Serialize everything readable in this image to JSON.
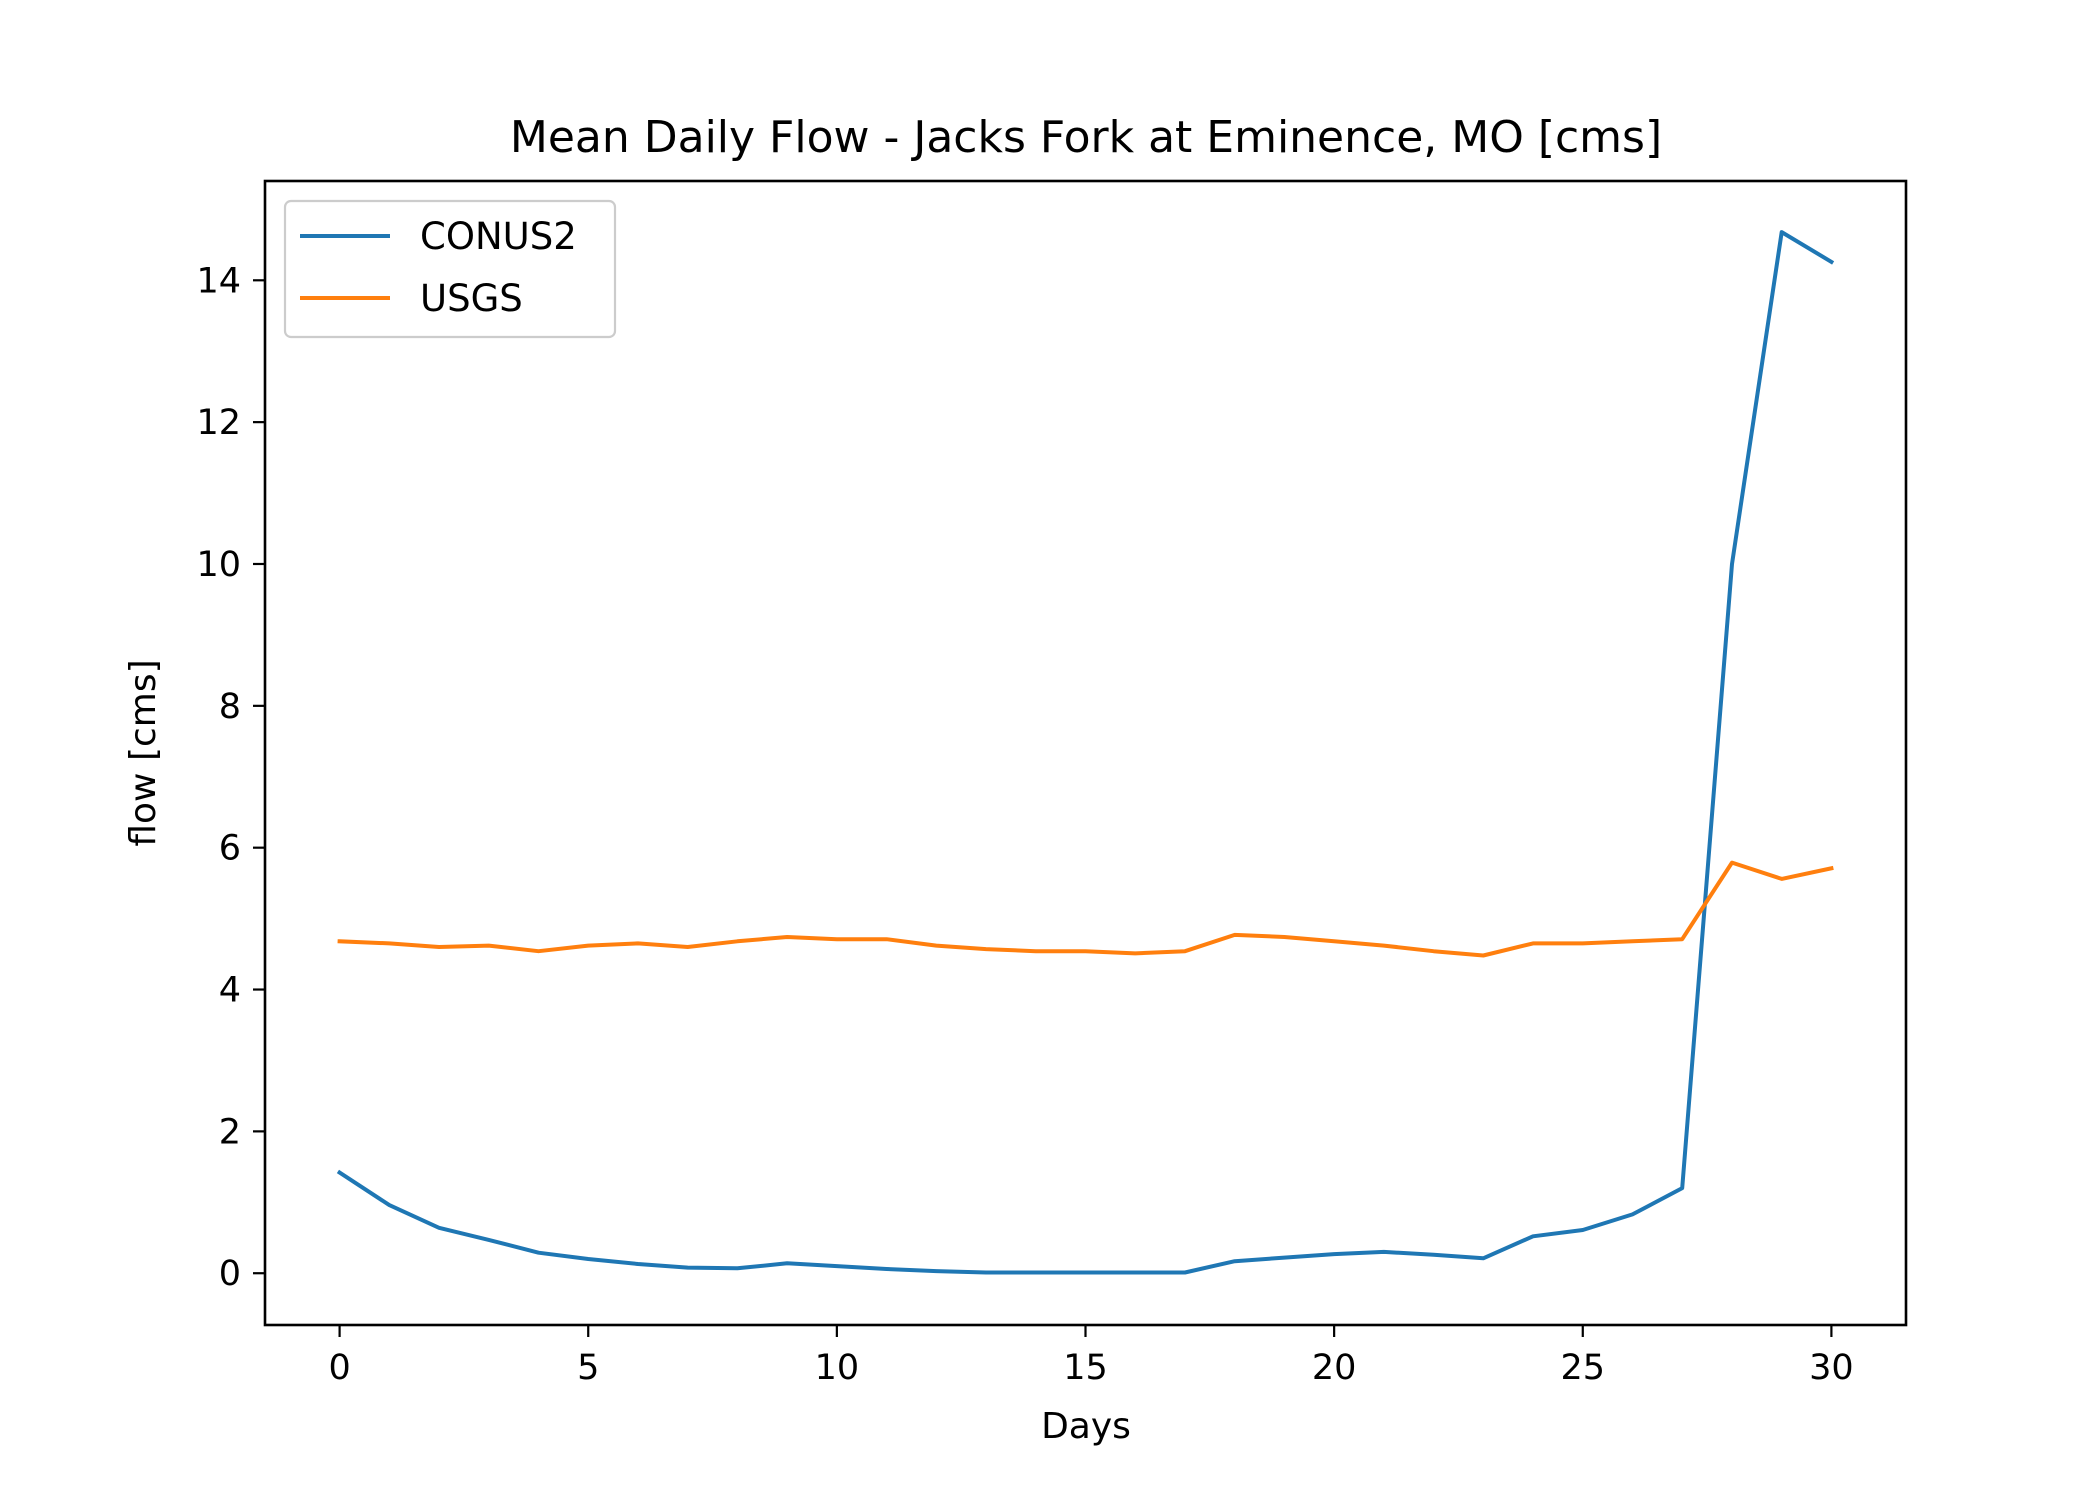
{
  "chart_data": {
    "type": "line",
    "title": "Mean Daily Flow - Jacks Fork at Eminence, MO [cms]",
    "xlabel": "Days",
    "ylabel": "flow [cms]",
    "xlim": [
      -1.5,
      31.5
    ],
    "ylim": [
      -0.73,
      15.4
    ],
    "xticks": [
      0,
      5,
      10,
      15,
      20,
      25,
      30
    ],
    "yticks": [
      0,
      2,
      4,
      6,
      8,
      10,
      12,
      14
    ],
    "xtick_labels": [
      "0",
      "5",
      "10",
      "15",
      "20",
      "25",
      "30"
    ],
    "ytick_labels": [
      "0",
      "2",
      "4",
      "6",
      "8",
      "10",
      "12",
      "14"
    ],
    "grid": false,
    "legend_position": "upper-left",
    "x": [
      0,
      1,
      2,
      3,
      4,
      5,
      6,
      7,
      8,
      9,
      10,
      11,
      12,
      13,
      14,
      15,
      16,
      17,
      18,
      19,
      20,
      21,
      22,
      23,
      24,
      25,
      26,
      27,
      28,
      29,
      30
    ],
    "series": [
      {
        "name": "CONUS2",
        "color": "#1f77b4",
        "values": [
          1.42,
          0.96,
          0.64,
          0.47,
          0.29,
          0.2,
          0.13,
          0.08,
          0.07,
          0.14,
          0.1,
          0.06,
          0.03,
          0.01,
          0.01,
          0.01,
          0.01,
          0.01,
          0.17,
          0.22,
          0.27,
          0.3,
          0.26,
          0.21,
          0.52,
          0.61,
          0.83,
          1.2,
          10.0,
          14.68,
          14.26
        ]
      },
      {
        "name": "USGS",
        "color": "#ff7f0e",
        "values": [
          4.68,
          4.65,
          4.6,
          4.62,
          4.54,
          4.62,
          4.65,
          4.6,
          4.68,
          4.74,
          4.71,
          4.71,
          4.62,
          4.57,
          4.54,
          4.54,
          4.51,
          4.54,
          4.77,
          4.74,
          4.68,
          4.62,
          4.54,
          4.48,
          4.65,
          4.65,
          4.68,
          4.71,
          5.79,
          5.56,
          5.71
        ]
      }
    ]
  }
}
